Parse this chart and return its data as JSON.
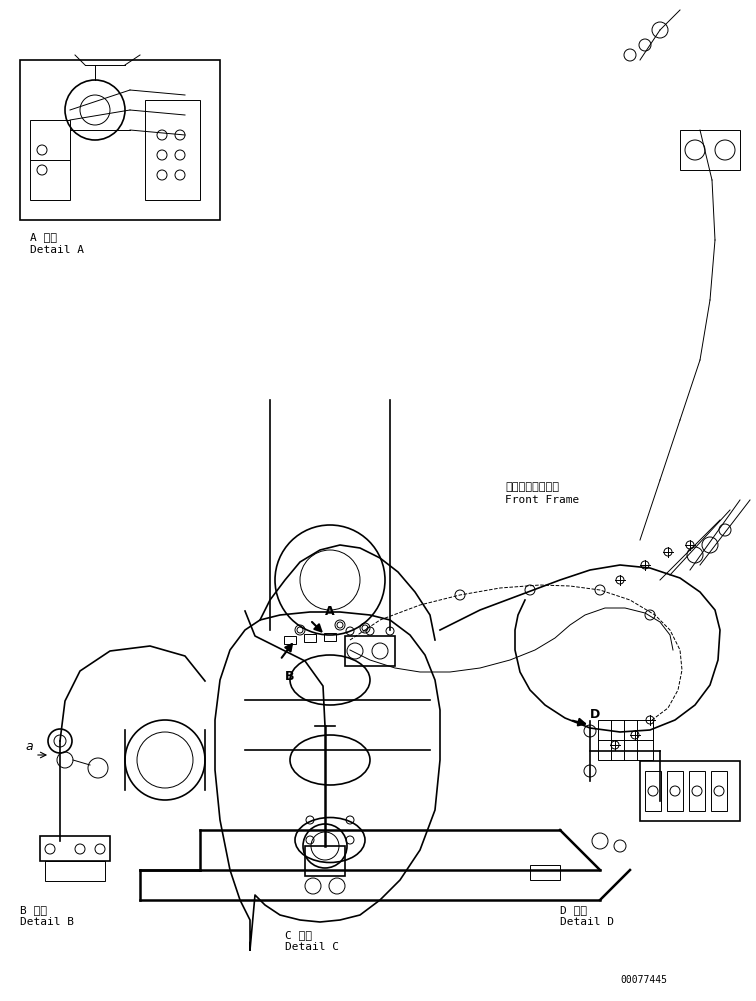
{
  "title": "",
  "background_color": "#ffffff",
  "line_color": "#000000",
  "figsize": [
    7.56,
    10.01
  ],
  "dpi": 100,
  "labels": {
    "detail_a_jp": "A 詳細",
    "detail_a_en": "Detail A",
    "detail_b_jp": "B 詳細",
    "detail_b_en": "Detail B",
    "detail_c_jp": "C 詳細",
    "detail_c_en": "Detail C",
    "detail_d_jp": "D 詳細",
    "detail_d_en": "Detail D",
    "front_frame_jp": "フロントフレーム",
    "front_frame_en": "Front Frame",
    "part_a": "A",
    "part_b": "B",
    "part_d": "D",
    "part_a_small": "a",
    "document_number": "00077445"
  },
  "font_size_label": 8,
  "font_size_small": 7,
  "font_size_doc": 7
}
